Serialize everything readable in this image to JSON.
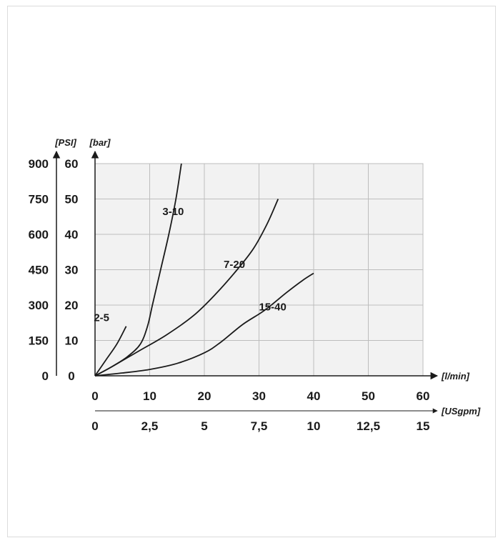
{
  "chart_data": {
    "type": "line",
    "x_axis_primary": {
      "unit": "[l/min]",
      "ticks": [
        "0",
        "10",
        "20",
        "30",
        "40",
        "50",
        "60"
      ],
      "range": [
        0,
        60
      ]
    },
    "x_axis_secondary": {
      "unit": "[USgpm]",
      "ticks": [
        "0",
        "2,5",
        "5",
        "7,5",
        "10",
        "12,5",
        "15"
      ]
    },
    "y_axis_primary": {
      "unit": "[bar]",
      "ticks": [
        "0",
        "10",
        "20",
        "30",
        "40",
        "50",
        "60"
      ],
      "range": [
        0,
        60
      ]
    },
    "y_axis_secondary": {
      "unit": "[PSI]",
      "ticks": [
        "0",
        "150",
        "300",
        "450",
        "600",
        "750",
        "900"
      ]
    },
    "grid": true,
    "series": [
      {
        "name": "2-5",
        "points": [
          [
            0,
            0
          ],
          [
            2,
            4.5
          ],
          [
            4,
            9
          ],
          [
            5.7,
            14
          ]
        ]
      },
      {
        "name": "3-10",
        "points": [
          [
            0,
            0
          ],
          [
            3,
            2.5
          ],
          [
            6,
            5.5
          ],
          [
            8.3,
            9
          ],
          [
            9.6,
            14
          ],
          [
            10.5,
            20
          ],
          [
            12,
            30
          ],
          [
            13.5,
            40
          ],
          [
            14.8,
            50
          ],
          [
            15.8,
            60
          ]
        ]
      },
      {
        "name": "7-20",
        "points": [
          [
            0,
            0
          ],
          [
            3,
            2.5
          ],
          [
            8,
            7
          ],
          [
            13,
            11.5
          ],
          [
            18,
            17
          ],
          [
            22,
            23
          ],
          [
            26,
            30
          ],
          [
            29,
            36
          ],
          [
            31.5,
            43
          ],
          [
            33.5,
            50
          ]
        ]
      },
      {
        "name": "15-40",
        "points": [
          [
            0,
            0
          ],
          [
            5,
            0.8
          ],
          [
            10,
            1.8
          ],
          [
            15,
            3.5
          ],
          [
            20,
            6.5
          ],
          [
            23,
            9.5
          ],
          [
            27,
            14.5
          ],
          [
            31,
            18.5
          ],
          [
            35,
            23.5
          ],
          [
            38,
            27
          ],
          [
            40,
            29
          ]
        ]
      }
    ],
    "label_positions_in_data_units": {
      "2-5": [
        1.2,
        15.5
      ],
      "3-10": [
        14.3,
        45.5
      ],
      "7-20": [
        25.5,
        30.5
      ],
      "15-40": [
        32.5,
        18.5
      ]
    }
  }
}
